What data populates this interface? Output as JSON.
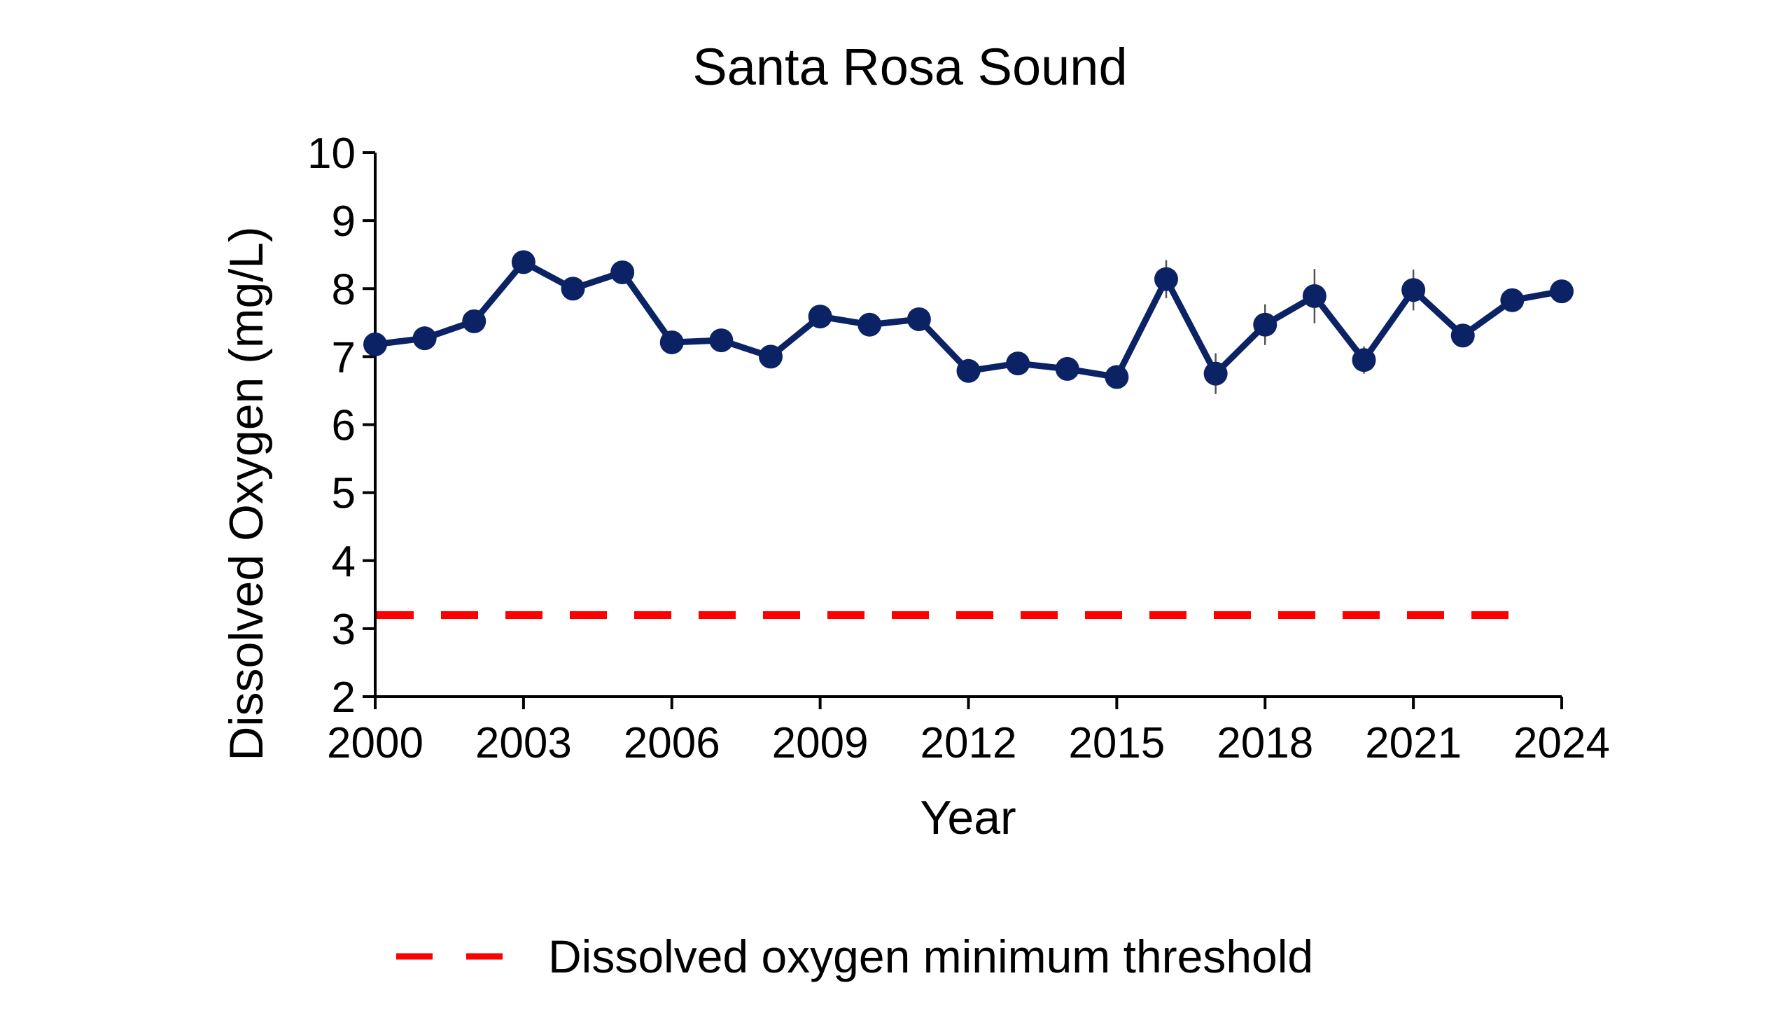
{
  "colors": {
    "series": "#0b2265",
    "threshold": "#ff0000",
    "axis": "#000000",
    "text": "#000000"
  },
  "chart_data": {
    "type": "line",
    "title": "Santa Rosa Sound",
    "xlabel": "Year",
    "ylabel": "Dissolved Oxygen (mg/L)",
    "xlim": [
      2000,
      2024
    ],
    "ylim": [
      2,
      10
    ],
    "grid": false,
    "legend_position": "bottom",
    "x_ticks": [
      2000,
      2003,
      2006,
      2009,
      2012,
      2015,
      2018,
      2021,
      2024
    ],
    "y_ticks": [
      2,
      3,
      4,
      5,
      6,
      7,
      8,
      9,
      10
    ],
    "series": [
      {
        "x": [
          2000,
          2001,
          2002,
          2003,
          2004,
          2005,
          2006,
          2007,
          2008,
          2009,
          2010,
          2011,
          2012,
          2013,
          2014,
          2015,
          2016,
          2017,
          2018,
          2019,
          2020,
          2021,
          2022,
          2023,
          2024
        ],
        "values": [
          7.18,
          7.27,
          7.52,
          8.39,
          8.0,
          8.24,
          7.21,
          7.24,
          7.0,
          7.59,
          7.47,
          7.55,
          6.79,
          6.9,
          6.82,
          6.7,
          8.14,
          6.75,
          7.47,
          7.89,
          6.95,
          7.98,
          7.31,
          7.83,
          7.96
        ],
        "error": [
          0.05,
          0.05,
          0.05,
          0.05,
          0.05,
          0.05,
          0.05,
          0.05,
          0.05,
          0.05,
          0.05,
          0.05,
          0.05,
          0.05,
          0.05,
          0.15,
          0.28,
          0.3,
          0.3,
          0.4,
          0.2,
          0.3,
          0.05,
          0.05,
          0.05
        ],
        "marker": "circle",
        "style": "solid"
      }
    ],
    "reference_lines": [
      {
        "name": "Dissolved oxygen minimum threshold",
        "y": 3.2,
        "x_range": [
          2000,
          2023.2
        ],
        "style": "dashed"
      }
    ]
  }
}
